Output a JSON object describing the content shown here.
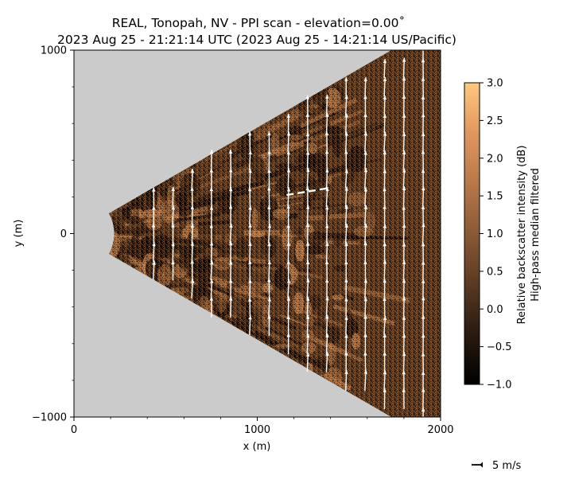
{
  "chart_data": {
    "type": "heatmap",
    "title_line1": "REAL, Tonopah, NV - PPI scan - elevation=0.00˚",
    "title_line2": "2023 Aug 25 - 21:21:14 UTC (2023 Aug 25 - 14:21:14 US/Pacific)",
    "xlabel": "x (m)",
    "ylabel": "y (m)",
    "xlim": [
      0,
      2000
    ],
    "ylim": [
      -1000,
      1000
    ],
    "x_ticks": [
      {
        "value": 0,
        "label": "0"
      },
      {
        "value": 1000,
        "label": "1000"
      },
      {
        "value": 2000,
        "label": "2000"
      }
    ],
    "y_ticks": [
      {
        "value": 1000,
        "label": "1000"
      },
      {
        "value": 0,
        "label": "0"
      },
      {
        "value": -1000,
        "label": "−1000"
      }
    ],
    "minor_step": 200,
    "scan_sector": {
      "min_range_m": 220,
      "half_angle_deg": 30,
      "range_beyond_axes": true
    },
    "colorbar": {
      "label_line1": "Relative backscatter intensity (dB)",
      "label_line2": "High-pass median filtered",
      "range": [
        -1.0,
        3.0
      ],
      "ticks": [
        {
          "value": 3.0,
          "label": "3.0"
        },
        {
          "value": 2.5,
          "label": "2.5"
        },
        {
          "value": 2.0,
          "label": "2.0"
        },
        {
          "value": 1.5,
          "label": "1.5"
        },
        {
          "value": 1.0,
          "label": "1.0"
        },
        {
          "value": 0.5,
          "label": "0.5"
        },
        {
          "value": 0.0,
          "label": "0.0"
        },
        {
          "value": -0.5,
          "label": "−0.5"
        },
        {
          "value": -1.0,
          "label": "−1.0"
        }
      ],
      "colormap": [
        "#000000",
        "#2a1a10",
        "#5a3a22",
        "#8a5a36",
        "#b8784a",
        "#e0975f",
        "#ffc87f"
      ]
    },
    "wind_vectors": {
      "grid_x_start": 435,
      "grid_x_step": 105,
      "grid_y_step": 100,
      "mean_u_mps": 0.1,
      "mean_v_mps": 4.5,
      "color": "#ffffff",
      "key": {
        "speed_mps": 5,
        "label": "5 m/s"
      }
    },
    "background_color": "#cbcbcb",
    "dashed_annotation": {
      "from": [
        1160,
        210
      ],
      "to": [
        1400,
        250
      ],
      "color": "#ffffff"
    }
  }
}
